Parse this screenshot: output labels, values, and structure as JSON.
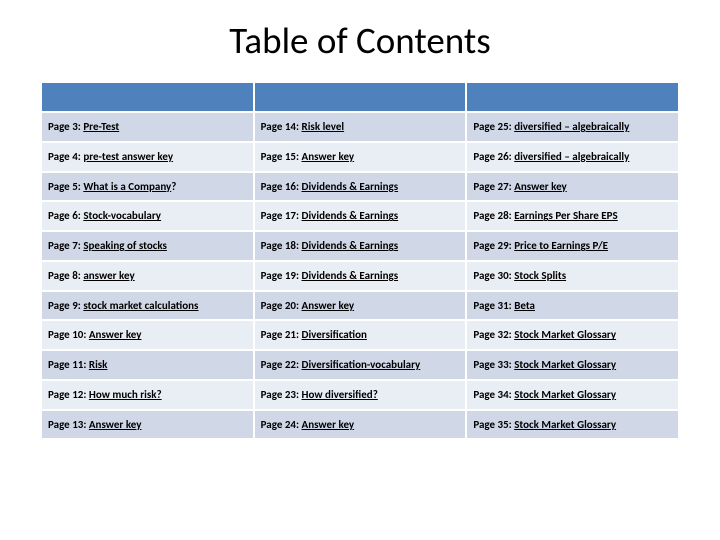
{
  "title": "Table of Contents",
  "table": {
    "type": "table",
    "columns": 3,
    "header_row_bg": "#4f81bd",
    "row_bg_odd": "#d0d8e8",
    "row_bg_even": "#e9edf4",
    "cell_fontsize": 11,
    "cell_fontweight": 700,
    "cell_color": "#000000",
    "border_spacing": 2,
    "rows": [
      [
        {
          "page": "Page 3",
          "label": "Pre-Test"
        },
        {
          "page": "Page 14",
          "label": "Risk level"
        },
        {
          "page": "Page 25",
          "label": "diversified – algebraically"
        }
      ],
      [
        {
          "page": "Page 4",
          "label": "pre-test answer key"
        },
        {
          "page": "Page 15",
          "label": "Answer key"
        },
        {
          "page": "Page 26",
          "label": "diversified – algebraically"
        }
      ],
      [
        {
          "page": "Page 5",
          "label": "What is a Company",
          "suffix": "?"
        },
        {
          "page": "Page 16",
          "label": "Dividends & Earnings"
        },
        {
          "page": "Page 27",
          "label": "Answer key"
        }
      ],
      [
        {
          "page": "Page 6",
          "label": "Stock-vocabulary"
        },
        {
          "page": "Page 17",
          "label": "Dividends & Earnings"
        },
        {
          "page": "Page 28",
          "label": "Earnings Per Share EPS"
        }
      ],
      [
        {
          "page": "Page 7",
          "label": "Speaking of stocks"
        },
        {
          "page": "Page 18",
          "label": "Dividends & Earnings"
        },
        {
          "page": "Page 29",
          "label": "Price to Earnings P/E"
        }
      ],
      [
        {
          "page": "Page 8",
          "label": "answer key"
        },
        {
          "page": "Page 19",
          "label": "Dividends & Earnings"
        },
        {
          "page": "Page 30",
          "label": "Stock Splits"
        }
      ],
      [
        {
          "page": "Page 9",
          "label": "stock market calculations"
        },
        {
          "page": "Page 20",
          "label": "Answer key"
        },
        {
          "page": "Page 31",
          "label": "Beta"
        }
      ],
      [
        {
          "page": "Page 10",
          "label": "Answer key"
        },
        {
          "page": "Page 21",
          "label": "Diversification"
        },
        {
          "page": "Page 32",
          "label": "Stock Market Glossary"
        }
      ],
      [
        {
          "page": "Page 11",
          "label": "Risk"
        },
        {
          "page": "Page 22",
          "label": "Diversification-vocabulary"
        },
        {
          "page": "Page 33",
          "label": "Stock Market Glossary"
        }
      ],
      [
        {
          "page": "Page 12",
          "label": "How much risk?"
        },
        {
          "page": "Page 23",
          "label": "How diversified?"
        },
        {
          "page": "Page 34",
          "label": "Stock Market Glossary"
        }
      ],
      [
        {
          "page": "Page 13",
          "label": "Answer key"
        },
        {
          "page": "Page 24",
          "label": "Answer key"
        },
        {
          "page": "Page 35",
          "label": "Stock Market Glossary"
        }
      ]
    ]
  }
}
